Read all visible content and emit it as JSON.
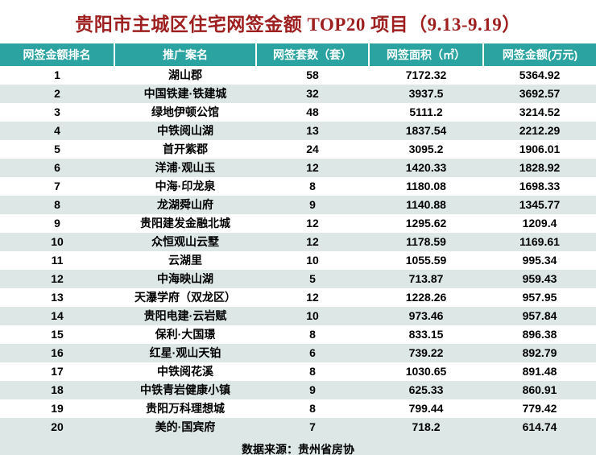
{
  "title": "贵阳市主城区住宅网签金额 TOP20 项目（9.13-9.19）",
  "footer": "数据来源：贵州省房协",
  "colors": {
    "title_color": "#9e1f1f",
    "header_bg": "#2aa3a1",
    "alt_row_bg": "#dce7e6"
  },
  "table": {
    "headers": [
      "网签金额排名",
      "推广案名",
      "网签套数（套）",
      "网签面积（㎡）",
      "网签金额(万元)"
    ],
    "rows": [
      [
        "1",
        "湖山郡",
        "58",
        "7172.32",
        "5364.92"
      ],
      [
        "2",
        "中国铁建·铁建城",
        "32",
        "3937.5",
        "3692.57"
      ],
      [
        "3",
        "绿地伊顿公馆",
        "48",
        "5111.2",
        "3214.52"
      ],
      [
        "4",
        "中铁阅山湖",
        "13",
        "1837.54",
        "2212.29"
      ],
      [
        "5",
        "首开紫郡",
        "24",
        "3095.2",
        "1906.01"
      ],
      [
        "6",
        "洋浦·观山玉",
        "12",
        "1420.33",
        "1828.92"
      ],
      [
        "7",
        "中海·印龙泉",
        "8",
        "1180.08",
        "1698.33"
      ],
      [
        "8",
        "龙湖舜山府",
        "9",
        "1140.88",
        "1345.77"
      ],
      [
        "9",
        "贵阳建发金融北城",
        "12",
        "1295.62",
        "1209.4"
      ],
      [
        "10",
        "众恒观山云墅",
        "12",
        "1178.59",
        "1169.61"
      ],
      [
        "11",
        "云湖里",
        "10",
        "1055.59",
        "995.34"
      ],
      [
        "12",
        "中海映山湖",
        "5",
        "713.87",
        "959.43"
      ],
      [
        "13",
        "天瀑学府（双龙区）",
        "12",
        "1228.26",
        "957.95"
      ],
      [
        "14",
        "贵阳电建·云岩赋",
        "10",
        "973.46",
        "957.84"
      ],
      [
        "15",
        "保利·大国璟",
        "8",
        "833.15",
        "896.38"
      ],
      [
        "16",
        "红星·观山天铂",
        "6",
        "739.22",
        "892.79"
      ],
      [
        "17",
        "中铁阅花溪",
        "8",
        "1030.65",
        "891.48"
      ],
      [
        "18",
        "中铁青岩健康小镇",
        "9",
        "625.33",
        "860.91"
      ],
      [
        "19",
        "贵阳万科理想城",
        "8",
        "799.44",
        "779.42"
      ],
      [
        "20",
        "美的·国宾府",
        "7",
        "718.2",
        "614.74"
      ]
    ]
  }
}
